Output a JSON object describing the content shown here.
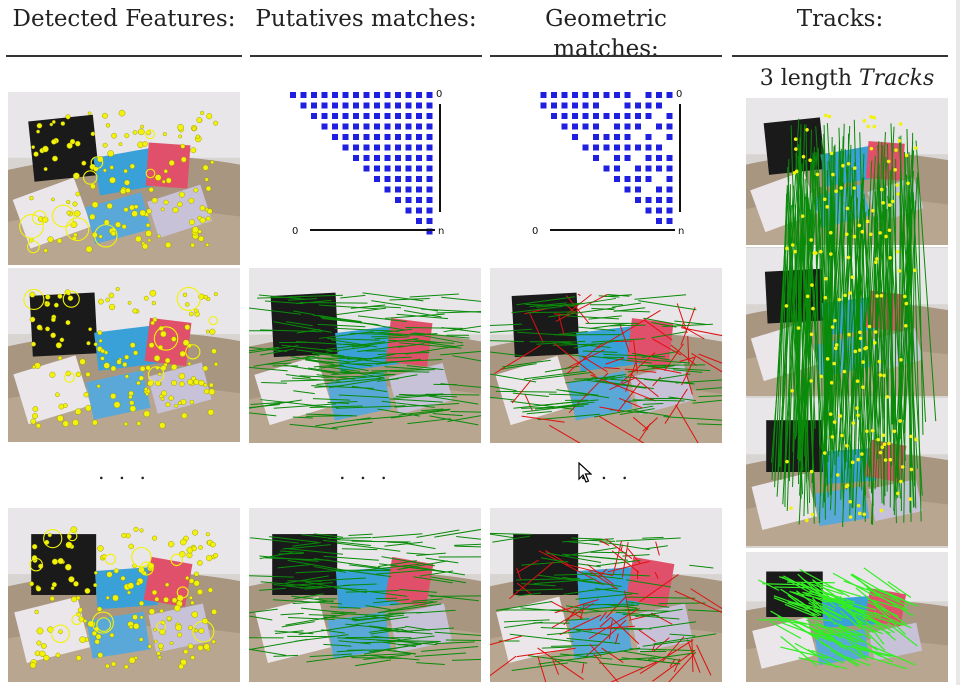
{
  "headers": {
    "col1": "Detected Features:",
    "col2": "Putatives matches:",
    "col3": "Geometric matches:",
    "col4": "Tracks:"
  },
  "tracks_subtitle": {
    "prefix": "3 length",
    "emph": "Tracks"
  },
  "ellipsis": {
    "col1": ". . .",
    "col2": ". . .",
    "col3": ". . ."
  },
  "matrix": {
    "origin_label": "0",
    "top_label": "0",
    "end_label": "n",
    "putative_color": "#1f1fe0",
    "geometric_color": "#1f1fe0"
  },
  "colors": {
    "feature": "#f2f20a",
    "inlier": "#0a8a0a",
    "outlier": "#e01010",
    "track_bright": "#33ee22"
  },
  "icons": [
    "mouse-cursor-icon"
  ]
}
